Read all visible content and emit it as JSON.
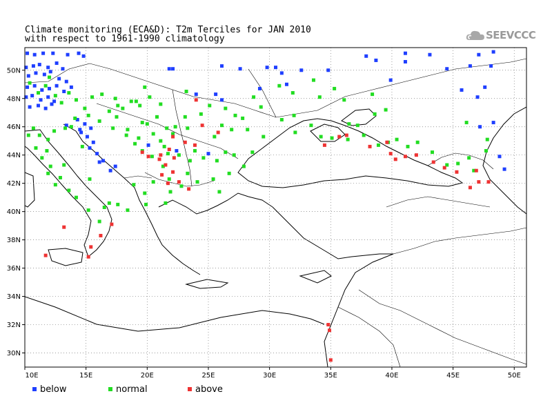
{
  "title": {
    "line1": "Climate monitoring (ECA&D): T2m Terciles for JAN 2010",
    "line2": "with respect to 1961-1990 climatology"
  },
  "logo": {
    "text": "SEEVCCC",
    "icon": "cloud-icon"
  },
  "map": {
    "lon_range": [
      10,
      51
    ],
    "lat_range": [
      29,
      51.6
    ],
    "grid": true,
    "lon_ticks": [
      "10E",
      "15E",
      "20E",
      "25E",
      "30E",
      "35E",
      "40E",
      "45E",
      "50E"
    ],
    "lat_ticks": [
      "30N",
      "32N",
      "34N",
      "36N",
      "38N",
      "40N",
      "42N",
      "44N",
      "46N",
      "48N",
      "50N"
    ]
  },
  "legend": [
    {
      "key": "below",
      "label": "below",
      "color": "#1f3fff"
    },
    {
      "key": "normal",
      "label": "normal",
      "color": "#22dd22"
    },
    {
      "key": "above",
      "label": "above",
      "color": "#ee3333"
    }
  ],
  "stations": {
    "below": [
      [
        10.2,
        51.2
      ],
      [
        10.8,
        51.1
      ],
      [
        11.5,
        51.2
      ],
      [
        12.3,
        51.2
      ],
      [
        13.5,
        51.1
      ],
      [
        14.4,
        51.2
      ],
      [
        14.8,
        51.0
      ],
      [
        10.1,
        50.2
      ],
      [
        10.7,
        50.3
      ],
      [
        11.2,
        50.4
      ],
      [
        11.9,
        50.2
      ],
      [
        12.6,
        50.5
      ],
      [
        13.1,
        50.1
      ],
      [
        10.3,
        49.6
      ],
      [
        10.9,
        49.8
      ],
      [
        11.6,
        49.7
      ],
      [
        12.1,
        49.9
      ],
      [
        12.8,
        49.4
      ],
      [
        13.4,
        49.2
      ],
      [
        10.2,
        48.8
      ],
      [
        10.8,
        48.9
      ],
      [
        11.4,
        48.6
      ],
      [
        12.0,
        48.7
      ],
      [
        12.6,
        48.9
      ],
      [
        13.2,
        48.5
      ],
      [
        13.8,
        48.8
      ],
      [
        10.1,
        48.1
      ],
      [
        10.6,
        48.2
      ],
      [
        11.3,
        47.9
      ],
      [
        11.9,
        48.1
      ],
      [
        12.4,
        47.8
      ],
      [
        10.4,
        47.4
      ],
      [
        11.1,
        47.5
      ],
      [
        11.7,
        47.3
      ],
      [
        12.2,
        47.6
      ],
      [
        14.3,
        46.5
      ],
      [
        14.9,
        46.2
      ],
      [
        15.4,
        45.9
      ],
      [
        14.6,
        45.6
      ],
      [
        15.1,
        45.3
      ],
      [
        15.6,
        44.9
      ],
      [
        15.3,
        44.5
      ],
      [
        15.9,
        44.1
      ],
      [
        16.1,
        43.5
      ],
      [
        13.4,
        46.1
      ],
      [
        17.0,
        42.9
      ],
      [
        22.1,
        50.1
      ],
      [
        26.1,
        50.3
      ],
      [
        27.6,
        50.1
      ],
      [
        30.5,
        50.2
      ],
      [
        32.6,
        50.0
      ],
      [
        38.7,
        50.7
      ],
      [
        41.1,
        50.6
      ],
      [
        44.5,
        50.1
      ],
      [
        46.4,
        50.3
      ],
      [
        48.1,
        50.3
      ],
      [
        48.3,
        51.3
      ],
      [
        43.1,
        51.1
      ],
      [
        41.1,
        51.2
      ],
      [
        34.8,
        50.0
      ],
      [
        37.9,
        51.0
      ],
      [
        47.1,
        51.1
      ],
      [
        25.6,
        48.3
      ],
      [
        26.1,
        47.9
      ],
      [
        29.2,
        48.7
      ],
      [
        31.0,
        49.8
      ],
      [
        39.9,
        49.3
      ],
      [
        45.7,
        48.6
      ],
      [
        47.6,
        48.8
      ],
      [
        47.0,
        48.1
      ],
      [
        24.0,
        48.3
      ],
      [
        21.8,
        50.1
      ],
      [
        29.8,
        50.2
      ],
      [
        25.0,
        44.1
      ],
      [
        22.4,
        44.3
      ],
      [
        14.5,
        45.8
      ],
      [
        16.4,
        43.6
      ],
      [
        17.4,
        43.2
      ],
      [
        20.1,
        44.7
      ],
      [
        49.2,
        43.0
      ],
      [
        48.8,
        43.9
      ],
      [
        48.3,
        46.3
      ],
      [
        47.2,
        46.0
      ],
      [
        31.4,
        49.0
      ]
    ],
    "normal": [
      [
        10.4,
        49.1
      ],
      [
        11.1,
        48.4
      ],
      [
        11.7,
        48.9
      ],
      [
        12.5,
        48.2
      ],
      [
        13.0,
        47.7
      ],
      [
        13.6,
        48.4
      ],
      [
        14.2,
        47.9
      ],
      [
        14.9,
        47.3
      ],
      [
        15.5,
        48.1
      ],
      [
        16.3,
        48.3
      ],
      [
        17.4,
        48.0
      ],
      [
        18.0,
        47.3
      ],
      [
        18.7,
        47.8
      ],
      [
        19.4,
        47.5
      ],
      [
        20.2,
        48.1
      ],
      [
        21.1,
        47.6
      ],
      [
        20.8,
        46.7
      ],
      [
        19.6,
        46.3
      ],
      [
        18.4,
        45.8
      ],
      [
        17.2,
        45.9
      ],
      [
        16.1,
        46.4
      ],
      [
        15.2,
        46.8
      ],
      [
        14.1,
        46.6
      ],
      [
        13.3,
        45.9
      ],
      [
        12.4,
        45.7
      ],
      [
        11.2,
        45.4
      ],
      [
        10.3,
        45.4
      ],
      [
        10.9,
        44.5
      ],
      [
        11.4,
        43.8
      ],
      [
        12.1,
        43.2
      ],
      [
        12.9,
        42.4
      ],
      [
        13.6,
        41.5
      ],
      [
        14.2,
        41.0
      ],
      [
        15.2,
        40.1
      ],
      [
        16.9,
        40.6
      ],
      [
        16.1,
        39.3
      ],
      [
        17.6,
        40.5
      ],
      [
        18.4,
        40.1
      ],
      [
        12.5,
        41.9
      ],
      [
        11.9,
        42.7
      ],
      [
        13.2,
        43.3
      ],
      [
        18.3,
        45.4
      ],
      [
        19.0,
        44.8
      ],
      [
        19.6,
        44.3
      ],
      [
        20.4,
        43.9
      ],
      [
        21.3,
        43.2
      ],
      [
        22.6,
        44.0
      ],
      [
        23.5,
        43.6
      ],
      [
        24.6,
        43.8
      ],
      [
        25.7,
        43.6
      ],
      [
        26.4,
        44.2
      ],
      [
        27.1,
        44.0
      ],
      [
        27.9,
        43.2
      ],
      [
        28.6,
        44.2
      ],
      [
        29.5,
        45.3
      ],
      [
        28.2,
        45.8
      ],
      [
        27.2,
        46.8
      ],
      [
        26.4,
        47.3
      ],
      [
        25.1,
        47.5
      ],
      [
        24.4,
        46.9
      ],
      [
        23.1,
        46.7
      ],
      [
        22.3,
        46.0
      ],
      [
        21.6,
        45.9
      ],
      [
        21.1,
        45.0
      ],
      [
        20.0,
        46.2
      ],
      [
        19.3,
        45.2
      ],
      [
        21.7,
        44.1
      ],
      [
        23.9,
        44.3
      ],
      [
        25.4,
        42.3
      ],
      [
        26.7,
        42.7
      ],
      [
        24.1,
        42.1
      ],
      [
        23.3,
        42.7
      ],
      [
        22.8,
        41.8
      ],
      [
        21.9,
        41.4
      ],
      [
        20.5,
        42.1
      ],
      [
        19.8,
        41.3
      ],
      [
        19.9,
        40.5
      ],
      [
        21.5,
        40.6
      ],
      [
        31.0,
        46.5
      ],
      [
        32.0,
        46.8
      ],
      [
        33.4,
        46.1
      ],
      [
        34.2,
        45.3
      ],
      [
        35.1,
        45.2
      ],
      [
        36.4,
        45.1
      ],
      [
        37.7,
        45.4
      ],
      [
        38.9,
        44.7
      ],
      [
        39.7,
        44.9
      ],
      [
        40.4,
        45.1
      ],
      [
        41.3,
        44.6
      ],
      [
        42.1,
        44.9
      ],
      [
        43.3,
        44.2
      ],
      [
        44.5,
        43.3
      ],
      [
        45.4,
        43.4
      ],
      [
        46.3,
        43.8
      ],
      [
        46.7,
        42.9
      ],
      [
        47.7,
        44.3
      ],
      [
        47.8,
        45.1
      ],
      [
        46.1,
        46.3
      ],
      [
        38.6,
        46.9
      ],
      [
        39.5,
        47.2
      ],
      [
        37.2,
        46.1
      ],
      [
        36.1,
        47.9
      ],
      [
        35.3,
        48.7
      ],
      [
        34.1,
        48.1
      ],
      [
        33.6,
        49.3
      ],
      [
        31.9,
        48.4
      ],
      [
        30.8,
        48.9
      ],
      [
        29.3,
        47.4
      ],
      [
        28.7,
        48.1
      ],
      [
        27.8,
        46.6
      ],
      [
        26.9,
        45.8
      ],
      [
        25.5,
        45.3
      ],
      [
        23.3,
        45.9
      ],
      [
        22.1,
        45.5
      ],
      [
        21.4,
        44.6
      ],
      [
        23.2,
        48.5
      ],
      [
        17.6,
        47.5
      ],
      [
        16.9,
        47.1
      ],
      [
        19.8,
        48.8
      ],
      [
        15.3,
        42.3
      ],
      [
        14.7,
        44.6
      ],
      [
        11.8,
        44.3
      ],
      [
        13.8,
        46.0
      ],
      [
        12.0,
        49.5
      ],
      [
        10.7,
        45.9
      ],
      [
        38.4,
        48.3
      ],
      [
        32.1,
        45.6
      ],
      [
        36.5,
        46.2
      ],
      [
        26.1,
        46.1
      ],
      [
        25.9,
        41.4
      ],
      [
        18.9,
        41.9
      ],
      [
        16.5,
        40.3
      ],
      [
        21.8,
        42.3
      ],
      [
        20.5,
        45.5
      ],
      [
        17.5,
        46.7
      ],
      [
        19.1,
        47.8
      ],
      [
        11.9,
        45.1
      ]
    ],
    "above": [
      [
        24.0,
        47.9
      ],
      [
        24.5,
        46.1
      ],
      [
        22.1,
        45.3
      ],
      [
        23.9,
        44.7
      ],
      [
        21.0,
        43.7
      ],
      [
        21.5,
        43.3
      ],
      [
        21.2,
        42.6
      ],
      [
        22.1,
        42.8
      ],
      [
        22.6,
        42.1
      ],
      [
        23.4,
        41.6
      ],
      [
        21.8,
        44.4
      ],
      [
        22.2,
        43.8
      ],
      [
        23.1,
        44.9
      ],
      [
        25.8,
        45.6
      ],
      [
        34.5,
        44.7
      ],
      [
        35.7,
        45.3
      ],
      [
        36.3,
        45.4
      ],
      [
        38.2,
        44.6
      ],
      [
        39.9,
        44.1
      ],
      [
        40.3,
        43.7
      ],
      [
        41.1,
        43.9
      ],
      [
        42.0,
        44.0
      ],
      [
        43.4,
        43.5
      ],
      [
        44.3,
        43.1
      ],
      [
        45.3,
        42.8
      ],
      [
        46.9,
        42.9
      ],
      [
        47.9,
        42.1
      ],
      [
        47.1,
        42.1
      ],
      [
        46.4,
        41.7
      ],
      [
        13.2,
        38.9
      ],
      [
        15.4,
        37.5
      ],
      [
        15.2,
        36.8
      ],
      [
        11.7,
        36.9
      ],
      [
        16.2,
        38.3
      ],
      [
        17.1,
        39.1
      ],
      [
        34.8,
        32.0
      ],
      [
        34.9,
        31.6
      ],
      [
        35.0,
        29.5
      ],
      [
        21.1,
        44.0
      ],
      [
        20.1,
        43.9
      ],
      [
        19.6,
        44.2
      ],
      [
        21.7,
        42.0
      ],
      [
        39.6,
        44.9
      ]
    ]
  }
}
